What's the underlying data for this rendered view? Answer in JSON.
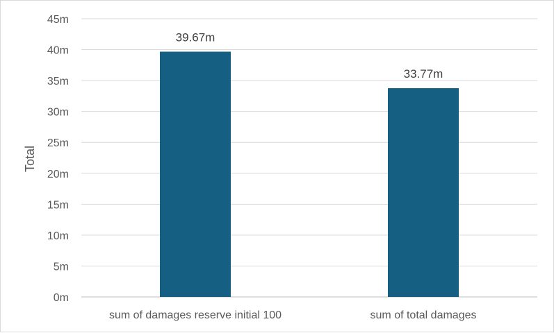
{
  "chart_data": {
    "type": "bar",
    "categories": [
      "sum of damages reserve initial 100",
      "sum of total damages"
    ],
    "series": [
      {
        "values": [
          39.67,
          33.77
        ],
        "data_labels": [
          "39.67m",
          "33.77m"
        ],
        "color": "#155f83"
      }
    ],
    "title": "",
    "xlabel": "",
    "ylabel": "Total",
    "ylim": [
      0,
      45
    ],
    "y_ticks": [
      0,
      5,
      10,
      15,
      20,
      25,
      30,
      35,
      40,
      45
    ],
    "y_tick_labels": [
      "0m",
      "5m",
      "10m",
      "15m",
      "20m",
      "25m",
      "30m",
      "35m",
      "40m",
      "45m"
    ],
    "grid": true,
    "legend": "none"
  },
  "colors": {
    "bar": "#155f83",
    "grid": "#d9d9d9",
    "text": "#595959"
  }
}
